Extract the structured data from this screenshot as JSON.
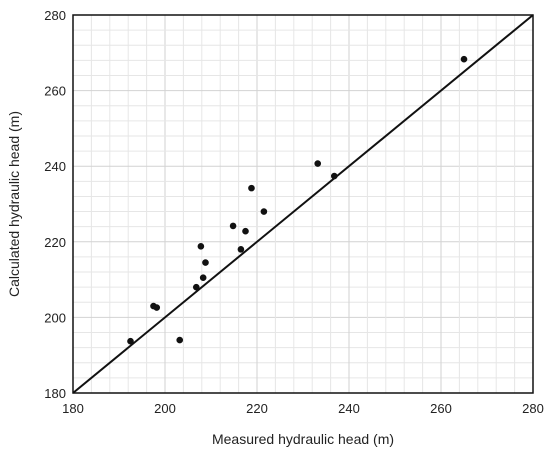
{
  "chart_data": {
    "type": "scatter",
    "title": "",
    "xlabel": "Measured hydraulic head (m)",
    "ylabel": "Calculated hydraulic head (m)",
    "xlim": [
      180,
      280
    ],
    "ylim": [
      180,
      280
    ],
    "major_ticks": [
      180,
      200,
      220,
      240,
      260,
      280
    ],
    "minor_step": 4,
    "grid": true,
    "reference_line": {
      "type": "1:1",
      "from": [
        180,
        180
      ],
      "to": [
        280,
        280
      ]
    },
    "points": [
      {
        "x": 192.5,
        "y": 193.7
      },
      {
        "x": 197.5,
        "y": 203.0
      },
      {
        "x": 198.2,
        "y": 202.6
      },
      {
        "x": 203.2,
        "y": 194.0
      },
      {
        "x": 206.8,
        "y": 208.0
      },
      {
        "x": 207.8,
        "y": 218.8
      },
      {
        "x": 208.3,
        "y": 210.5
      },
      {
        "x": 208.8,
        "y": 214.5
      },
      {
        "x": 214.8,
        "y": 224.2
      },
      {
        "x": 216.5,
        "y": 218.0
      },
      {
        "x": 217.5,
        "y": 222.8
      },
      {
        "x": 218.8,
        "y": 234.2
      },
      {
        "x": 221.5,
        "y": 228.0
      },
      {
        "x": 233.2,
        "y": 240.7
      },
      {
        "x": 236.8,
        "y": 237.4
      },
      {
        "x": 265.0,
        "y": 268.3
      }
    ],
    "colors": {
      "points": "#111111",
      "line": "#111111",
      "grid_minor": "#e6e6e6",
      "grid_major": "#d2d2d2",
      "frame": "#111111"
    }
  }
}
